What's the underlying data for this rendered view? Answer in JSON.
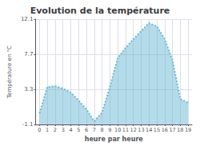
{
  "chart_data": {
    "type": "area",
    "title": "Evolution de la température",
    "xlabel": "heure par heure",
    "ylabel": "Température en °C",
    "x": [
      0,
      1,
      2,
      3,
      4,
      5,
      6,
      7,
      8,
      9,
      10,
      11,
      12,
      13,
      14,
      15,
      16,
      17,
      18,
      19
    ],
    "values": [
      0.3,
      3.6,
      3.7,
      3.4,
      2.9,
      1.9,
      0.8,
      -0.7,
      0.4,
      3.6,
      7.2,
      8.5,
      9.6,
      10.6,
      11.6,
      11.2,
      9.6,
      7.0,
      2.1,
      1.6
    ],
    "color": "#6ab8d4",
    "line_style": "dotted",
    "xlim": [
      -0.5,
      19.5
    ],
    "xticks": [
      0,
      1,
      2,
      3,
      4,
      5,
      6,
      7,
      8,
      9,
      10,
      11,
      12,
      13,
      14,
      15,
      16,
      17,
      18,
      19
    ],
    "ylim": [
      -1.1,
      12.1
    ],
    "yticks": [
      -1.1,
      3.3,
      7.7,
      12.1
    ],
    "grid": true
  }
}
